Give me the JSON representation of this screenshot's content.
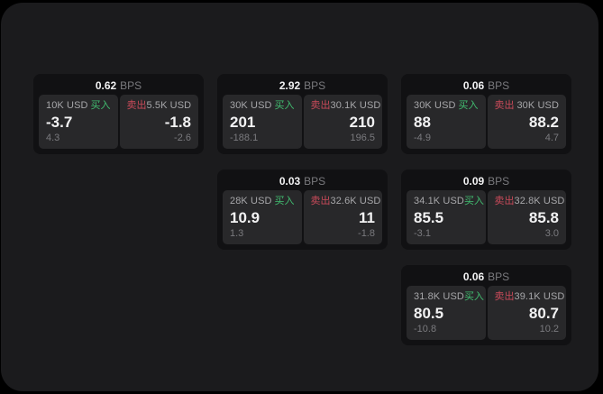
{
  "colors": {
    "buy_green": "#41bd70",
    "sell_red": "#c84a59",
    "card_bg": "#111113",
    "panel_bg": "#28282a",
    "container_bg": "#1b1b1d",
    "text_primary": "#f2f2f3",
    "text_label": "#a6a6a9",
    "text_secondary": "#7a7a7e"
  },
  "cards": [
    {
      "bps_value": "0.62",
      "bps_unit": "BPS",
      "buy": {
        "amount": "10K USD",
        "side_label": "买入",
        "price": "-3.7",
        "change": "4.3"
      },
      "sell": {
        "amount": "5.5K USD",
        "side_label": "卖出",
        "price": "-1.8",
        "change": "-2.6"
      }
    },
    {
      "bps_value": "2.92",
      "bps_unit": "BPS",
      "buy": {
        "amount": "30K USD",
        "side_label": "买入",
        "price": "201",
        "change": "-188.1"
      },
      "sell": {
        "amount": "30.1K USD",
        "side_label": "卖出",
        "price": "210",
        "change": "196.5"
      }
    },
    {
      "bps_value": "0.06",
      "bps_unit": "BPS",
      "buy": {
        "amount": "30K USD",
        "side_label": "买入",
        "price": "88",
        "change": "-4.9"
      },
      "sell": {
        "amount": "30K USD",
        "side_label": "卖出",
        "price": "88.2",
        "change": "4.7"
      }
    },
    {
      "bps_value": "0.03",
      "bps_unit": "BPS",
      "buy": {
        "amount": "28K USD",
        "side_label": "买入",
        "price": "10.9",
        "change": "1.3"
      },
      "sell": {
        "amount": "32.6K USD",
        "side_label": "卖出",
        "price": "11",
        "change": "-1.8"
      }
    },
    {
      "bps_value": "0.09",
      "bps_unit": "BPS",
      "buy": {
        "amount": "34.1K USD",
        "side_label": "买入",
        "price": "85.5",
        "change": "-3.1"
      },
      "sell": {
        "amount": "32.8K USD",
        "side_label": "卖出",
        "price": "85.8",
        "change": "3.0"
      }
    },
    {
      "bps_value": "0.06",
      "bps_unit": "BPS",
      "buy": {
        "amount": "31.8K USD",
        "side_label": "买入",
        "price": "80.5",
        "change": "-10.8"
      },
      "sell": {
        "amount": "39.1K USD",
        "side_label": "卖出",
        "price": "80.7",
        "change": "10.2"
      }
    }
  ]
}
